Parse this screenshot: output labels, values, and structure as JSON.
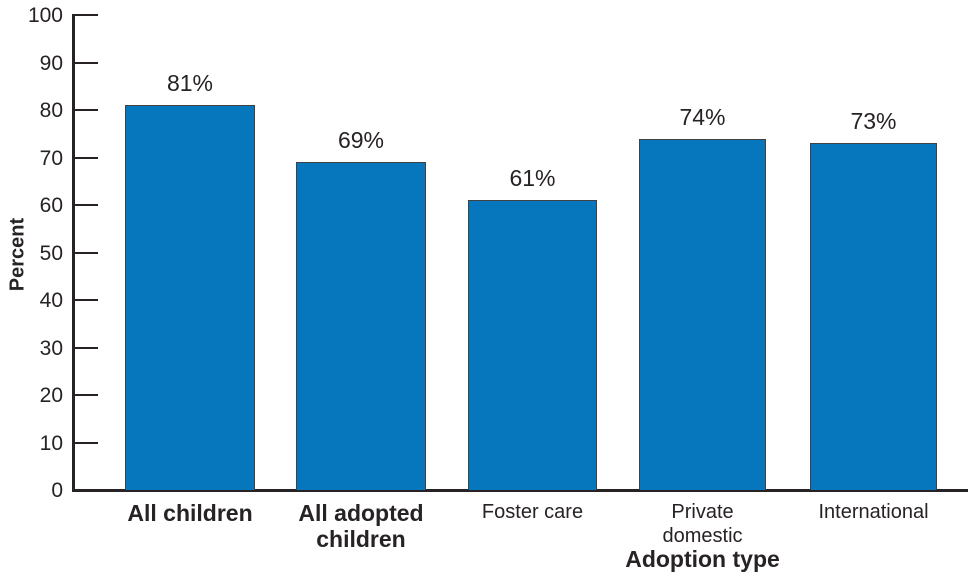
{
  "chart_data": {
    "type": "bar",
    "title": "",
    "categories": [
      "All children",
      "All adopted\nchildren",
      "Foster care",
      "Private\ndomestic",
      "International"
    ],
    "category_emphasis": [
      true,
      true,
      false,
      false,
      false
    ],
    "values": [
      81,
      69,
      61,
      74,
      73
    ],
    "value_labels": [
      "81%",
      "69%",
      "61%",
      "74%",
      "73%"
    ],
    "xlabel": "Adoption type",
    "ylabel": "Percent",
    "ylim": [
      0,
      100
    ],
    "yticks": [
      0,
      10,
      20,
      30,
      40,
      50,
      60,
      70,
      80,
      90,
      100
    ],
    "grid": false,
    "legend": "none",
    "colors": {
      "bar_fill": "#0777bd",
      "bar_border": "#414042",
      "axis": "#272223",
      "text": "#272223"
    }
  }
}
